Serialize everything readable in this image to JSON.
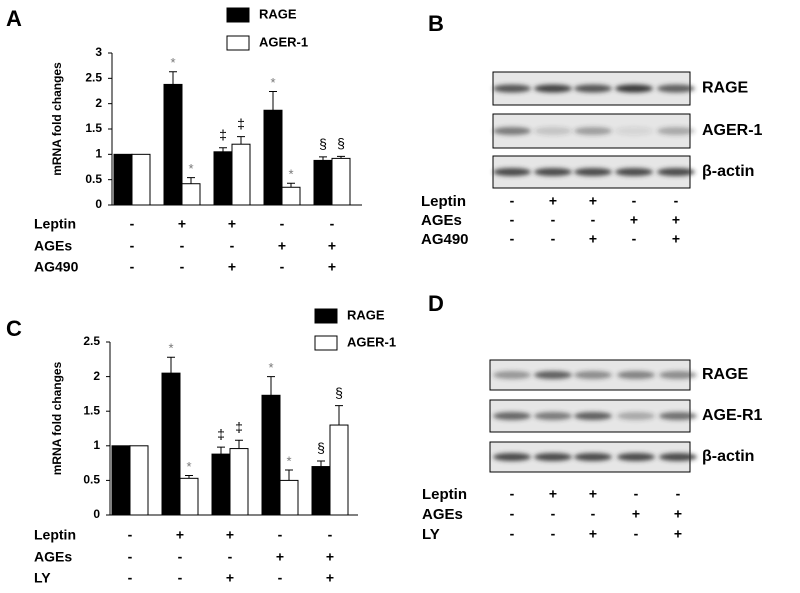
{
  "chart_data": [
    {
      "type": "bar",
      "panel": "A",
      "y_label": "mRNA fold changes",
      "categories": [
        null,
        null,
        null,
        null,
        null
      ],
      "ylim": [
        0,
        3
      ],
      "yticks": [
        0,
        0.5,
        1,
        1.5,
        2,
        2.5,
        3
      ],
      "series": [
        {
          "name": "RAGE",
          "color": "#000000",
          "values": [
            1,
            2.38,
            1.05,
            1.87,
            0.88
          ],
          "errors": [
            0,
            0.25,
            0.08,
            0.37,
            0.07
          ],
          "annotations": [
            null,
            "*",
            "‡",
            "*",
            "§"
          ]
        },
        {
          "name": "AGER-1",
          "color": "#ffffff",
          "values": [
            1,
            0.42,
            1.2,
            0.35,
            0.92
          ],
          "errors": [
            0,
            0.12,
            0.15,
            0.08,
            0.04
          ],
          "annotations": [
            null,
            "*",
            "‡",
            "*",
            "§"
          ]
        }
      ],
      "treatments": [
        {
          "name": "Leptin",
          "signs": [
            "-",
            "+",
            "+",
            "-",
            "-"
          ]
        },
        {
          "name": "AGEs",
          "signs": [
            "-",
            "-",
            "-",
            "+",
            "+"
          ]
        },
        {
          "name": "AG490",
          "signs": [
            "-",
            "-",
            "+",
            "-",
            "+"
          ]
        }
      ]
    },
    {
      "type": "bar",
      "panel": "C",
      "y_label": "mRNA fold changes",
      "categories": [
        null,
        null,
        null,
        null,
        null
      ],
      "ylim": [
        0,
        2.5
      ],
      "yticks": [
        0,
        0.5,
        1,
        1.5,
        2,
        2.5
      ],
      "series": [
        {
          "name": "RAGE",
          "color": "#000000",
          "values": [
            1,
            2.05,
            0.88,
            1.73,
            0.7
          ],
          "errors": [
            0,
            0.23,
            0.1,
            0.27,
            0.08
          ],
          "annotations": [
            null,
            "*",
            "‡",
            "*",
            "§"
          ]
        },
        {
          "name": "AGER-1",
          "color": "#ffffff",
          "values": [
            1,
            0.53,
            0.96,
            0.5,
            1.3
          ],
          "errors": [
            0,
            0.04,
            0.12,
            0.15,
            0.28
          ],
          "annotations": [
            null,
            "*",
            "‡",
            "*",
            "§"
          ]
        }
      ],
      "treatments": [
        {
          "name": "Leptin",
          "signs": [
            "-",
            "+",
            "+",
            "-",
            "-"
          ]
        },
        {
          "name": "AGEs",
          "signs": [
            "-",
            "-",
            "-",
            "+",
            "+"
          ]
        },
        {
          "name": "LY",
          "signs": [
            "-",
            "-",
            "+",
            "-",
            "+"
          ]
        }
      ]
    }
  ],
  "blots": [
    {
      "panel": "B",
      "bands": [
        "RAGE",
        "AGER-1",
        "β-actin"
      ],
      "treatments": [
        {
          "name": "Leptin",
          "signs": [
            "-",
            "+",
            "+",
            "-",
            "-"
          ]
        },
        {
          "name": "AGEs",
          "signs": [
            "-",
            "-",
            "-",
            "+",
            "+"
          ]
        },
        {
          "name": "AG490",
          "signs": [
            "-",
            "-",
            "+",
            "-",
            "+"
          ]
        }
      ]
    },
    {
      "panel": "D",
      "bands": [
        "RAGE",
        "AGE-R1",
        "β-actin"
      ],
      "treatments": [
        {
          "name": "Leptin",
          "signs": [
            "-",
            "+",
            "+",
            "-",
            "-"
          ]
        },
        {
          "name": "AGEs",
          "signs": [
            "-",
            "-",
            "-",
            "+",
            "+"
          ]
        },
        {
          "name": "LY",
          "signs": [
            "-",
            "-",
            "+",
            "-",
            "+"
          ]
        }
      ]
    }
  ]
}
